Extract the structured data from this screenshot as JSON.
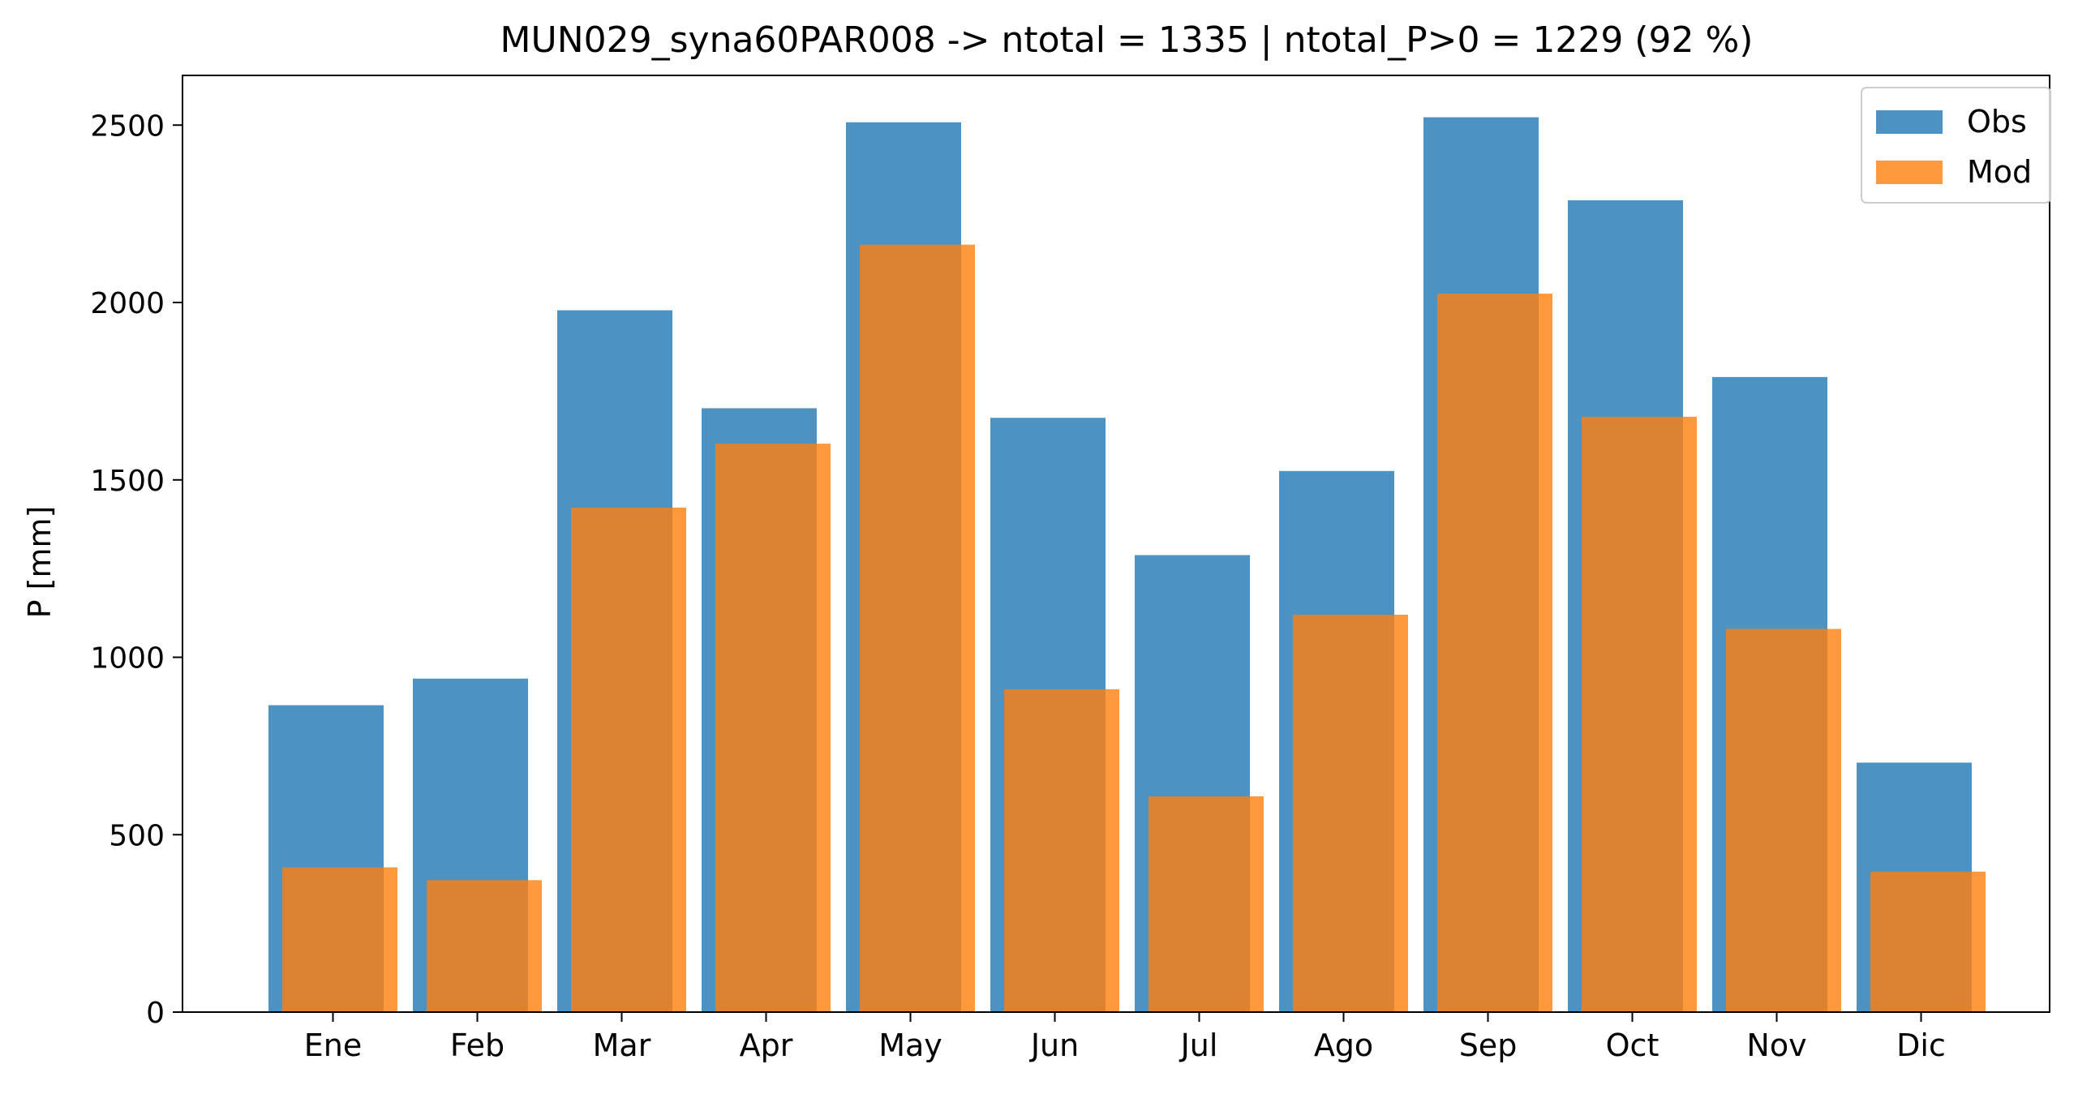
{
  "chart_data": {
    "type": "bar",
    "title": "MUN029_syna60PAR008 -> ntotal = 1335 | ntotal_P>0 = 1229 (92 %)",
    "xlabel": "",
    "ylabel": "P [mm]",
    "categories": [
      "Ene",
      "Feb",
      "Mar",
      "Apr",
      "May",
      "Jun",
      "Jul",
      "Ago",
      "Sep",
      "Oct",
      "Nov",
      "Dic"
    ],
    "series": [
      {
        "name": "Obs",
        "color": "#1f77b4",
        "values": [
          865,
          940,
          1978,
          1702,
          2508,
          1675,
          1288,
          1525,
          2522,
          2288,
          1790,
          703
        ]
      },
      {
        "name": "Mod",
        "color": "#ff7f0e",
        "values": [
          408,
          372,
          1422,
          1602,
          2163,
          910,
          608,
          1120,
          2025,
          1678,
          1080,
          396
        ]
      }
    ],
    "ylim": [
      0,
      2640
    ],
    "yticks": [
      0,
      500,
      1000,
      1500,
      2000,
      2500
    ],
    "grid": false,
    "legend": "top-right"
  }
}
